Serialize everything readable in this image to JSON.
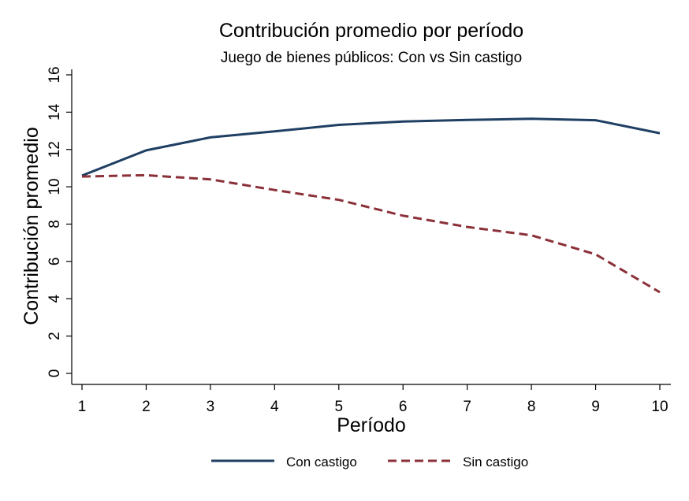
{
  "chart_data": {
    "type": "line",
    "title": "Contribución promedio por período",
    "subtitle": "Juego de bienes públicos: Con vs Sin castigo",
    "xlabel": "Período",
    "ylabel": "Contribución promedio",
    "x": [
      1,
      2,
      3,
      4,
      5,
      6,
      7,
      8,
      9,
      10
    ],
    "xlim": [
      1,
      10
    ],
    "ylim": [
      0,
      16
    ],
    "xticks": [
      "1",
      "2",
      "3",
      "4",
      "5",
      "6",
      "7",
      "8",
      "9",
      "10"
    ],
    "yticks": [
      "0",
      "2",
      "4",
      "6",
      "8",
      "10",
      "12",
      "14",
      "16"
    ],
    "grid": false,
    "legend_position": "bottom",
    "series": [
      {
        "name": "Con castigo",
        "color": "#1f3f63",
        "style": "solid",
        "values": [
          10.6,
          11.95,
          12.65,
          12.97,
          13.32,
          13.5,
          13.58,
          13.65,
          13.57,
          12.87
        ]
      },
      {
        "name": "Sin castigo",
        "color": "#8b3038",
        "style": "dashed",
        "values": [
          10.55,
          10.62,
          10.4,
          9.83,
          9.3,
          8.45,
          7.85,
          7.4,
          6.38,
          4.35
        ]
      }
    ]
  }
}
